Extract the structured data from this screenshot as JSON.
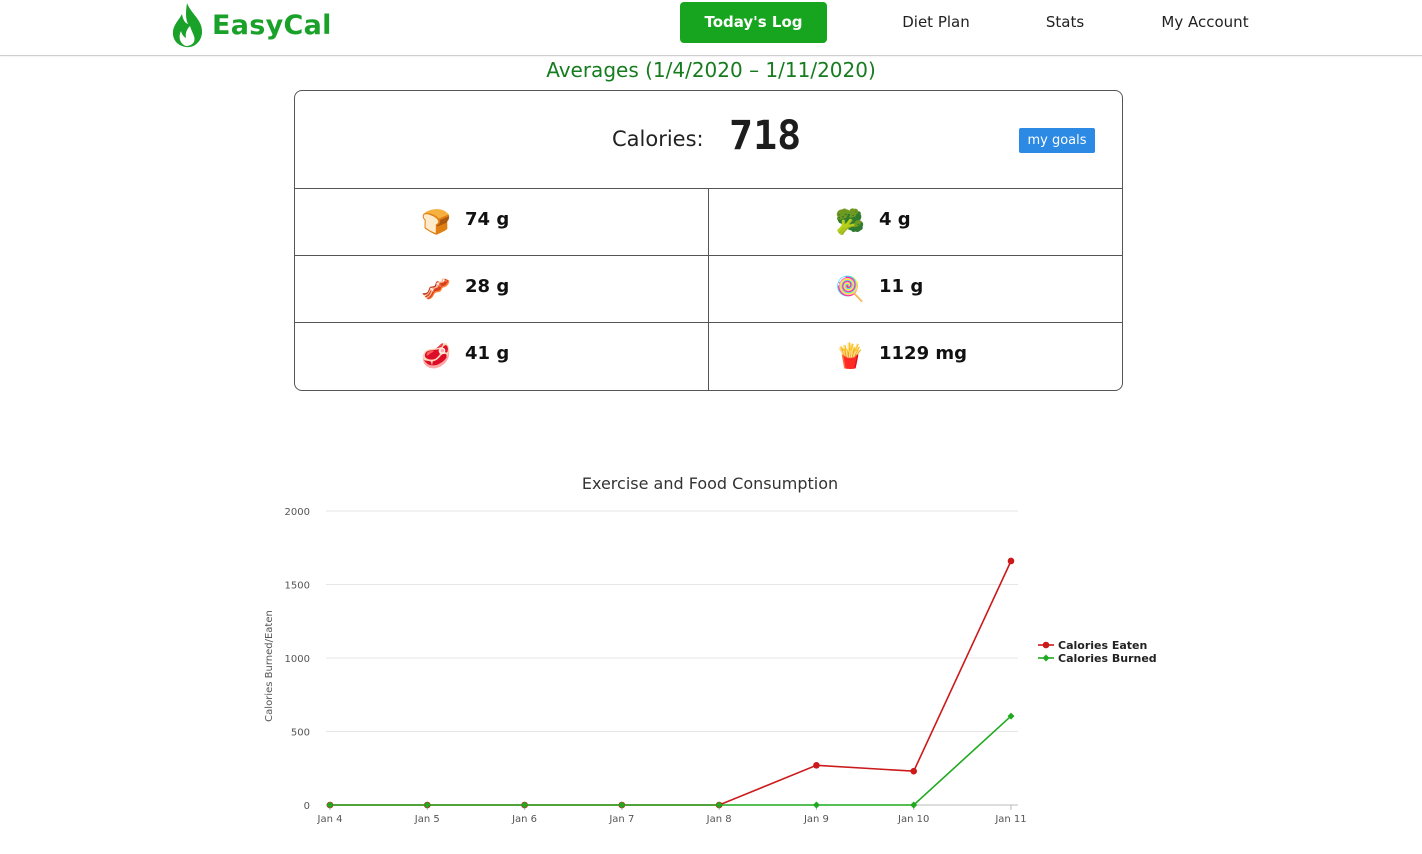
{
  "brand": {
    "name": "EasyCal",
    "icon": "flame-icon",
    "color": "#1aa12a"
  },
  "nav": {
    "items": [
      {
        "label": "Today's Log",
        "active": true
      },
      {
        "label": "Diet Plan",
        "active": false
      },
      {
        "label": "Stats",
        "active": false
      },
      {
        "label": "My Account",
        "active": false
      }
    ],
    "active_color": "#17a51f"
  },
  "averages": {
    "title": "Averages (1/4/2020 – 1/11/2020)",
    "calories_label": "Calories:",
    "calories_value": "718",
    "goals_button": "my goals",
    "macros": [
      {
        "icon": "bread-icon",
        "glyph": "🍞",
        "value": "74 g"
      },
      {
        "icon": "broccoli-icon",
        "glyph": "🥦",
        "value": "4 g"
      },
      {
        "icon": "bacon-icon",
        "glyph": "🥓",
        "value": "28 g"
      },
      {
        "icon": "lollipop-icon",
        "glyph": "🍭",
        "value": "11 g"
      },
      {
        "icon": "meat-icon",
        "glyph": "🥩",
        "value": "41 g"
      },
      {
        "icon": "fries-icon",
        "glyph": "🍟",
        "value": "1129 mg"
      }
    ]
  },
  "chart_data": {
    "type": "line",
    "title": "Exercise and Food Consumption",
    "xlabel": "",
    "ylabel": "Calories Burned/Eaten",
    "categories": [
      "Jan 4",
      "Jan 5",
      "Jan 6",
      "Jan 7",
      "Jan 8",
      "Jan 9",
      "Jan 10",
      "Jan 11"
    ],
    "ylim": [
      0,
      2000
    ],
    "yticks": [
      0,
      500,
      1000,
      1500,
      2000
    ],
    "grid": true,
    "legend_position": "right",
    "series": [
      {
        "name": "Calories Eaten",
        "color": "#cc1a1a",
        "marker": "circle",
        "values": [
          0,
          0,
          0,
          0,
          0,
          270,
          230,
          1660
        ]
      },
      {
        "name": "Calories Burned",
        "color": "#1faa1f",
        "marker": "diamond",
        "values": [
          0,
          0,
          0,
          0,
          0,
          0,
          0,
          605
        ]
      }
    ]
  }
}
